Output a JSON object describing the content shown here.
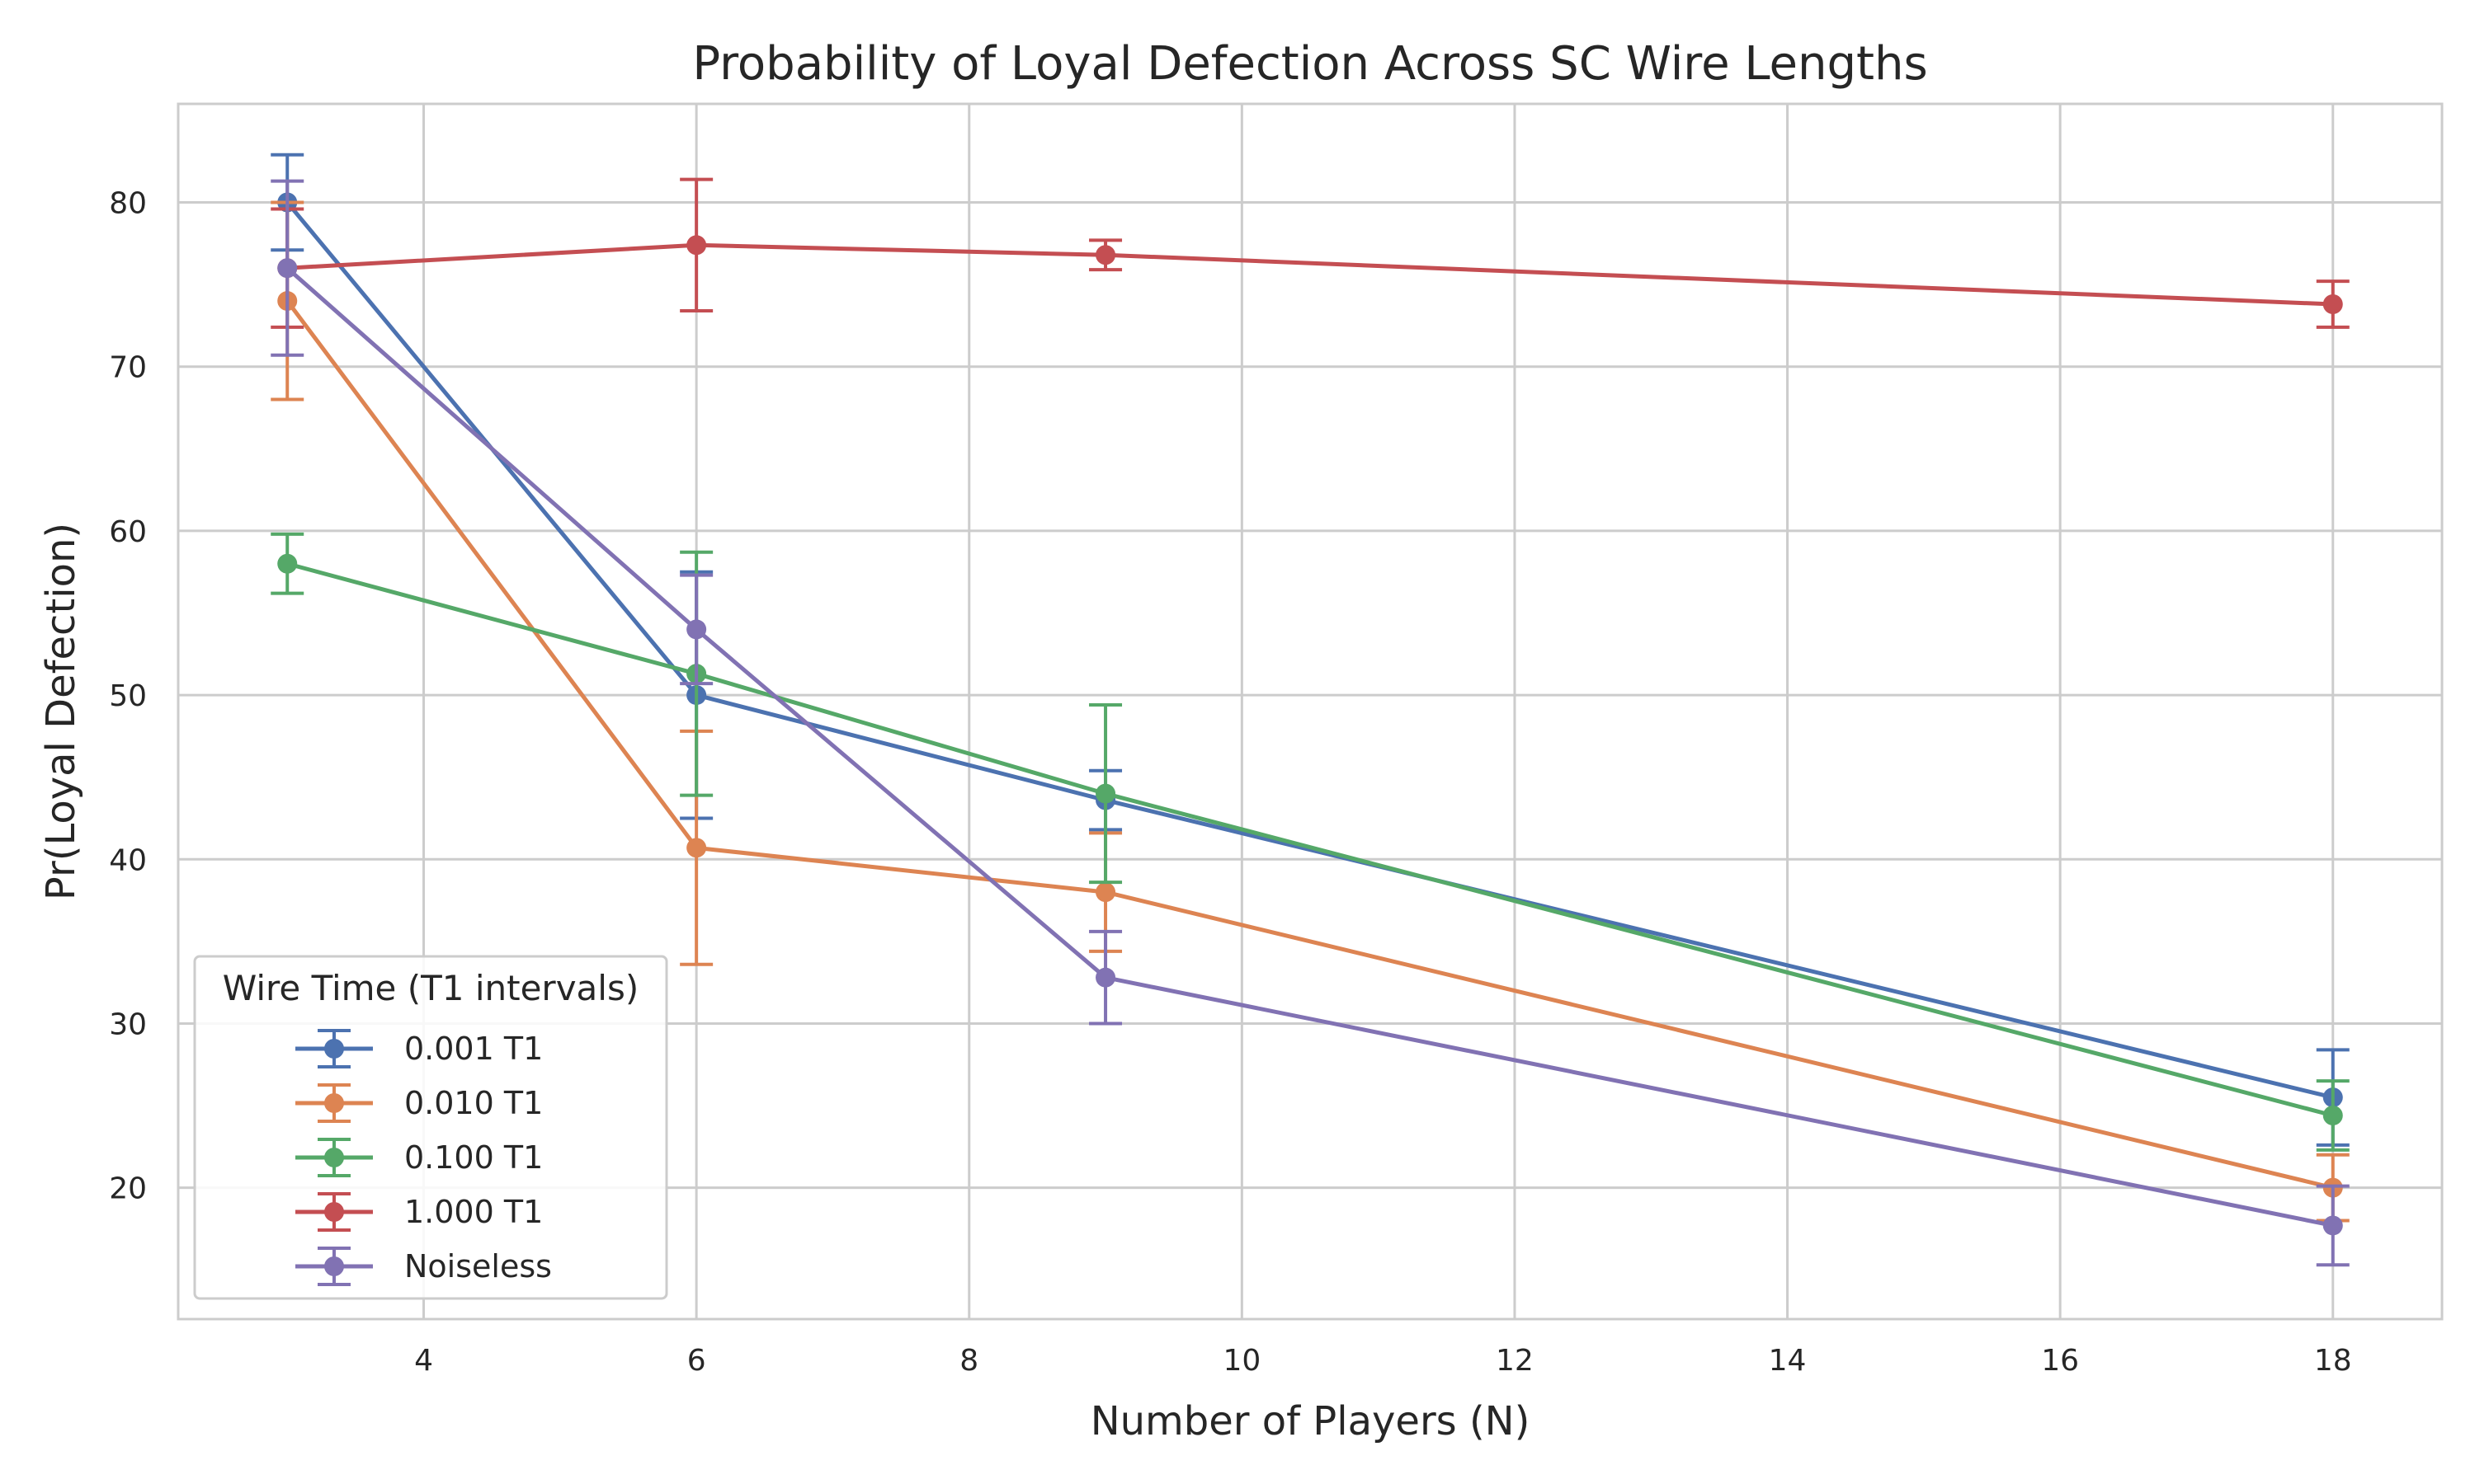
{
  "chart_data": {
    "type": "line",
    "title": "Probability of Loyal Defection Across SC Wire Lengths",
    "xlabel": "Number of Players (N)",
    "ylabel": "Pr(Loyal Defection)",
    "xlim": [
      2.2,
      18.8
    ],
    "ylim": [
      12,
      86
    ],
    "xticks": [
      4,
      6,
      8,
      10,
      12,
      14,
      16,
      18
    ],
    "yticks": [
      20,
      30,
      40,
      50,
      60,
      70,
      80
    ],
    "grid": true,
    "legend": {
      "title": "Wire Time (T1 intervals)",
      "placement": "lower-left"
    },
    "x": [
      3,
      6,
      9,
      18
    ],
    "series": [
      {
        "name": "0.001 T1",
        "color": "#4c72b0",
        "values": [
          80.0,
          50.0,
          43.6,
          25.5
        ],
        "errors": [
          2.9,
          7.5,
          1.8,
          2.9
        ]
      },
      {
        "name": "0.010 T1",
        "color": "#dd8452",
        "values": [
          74.0,
          40.7,
          38.0,
          20.0
        ],
        "errors": [
          6.0,
          7.1,
          3.6,
          2.0
        ]
      },
      {
        "name": "0.100 T1",
        "color": "#55a868",
        "values": [
          58.0,
          51.3,
          44.0,
          24.4
        ],
        "errors": [
          1.8,
          7.4,
          5.4,
          2.1
        ]
      },
      {
        "name": "1.000 T1",
        "color": "#c44e52",
        "values": [
          76.0,
          77.4,
          76.8,
          73.8
        ],
        "errors": [
          3.6,
          4.0,
          0.9,
          1.4
        ]
      },
      {
        "name": "Noiseless",
        "color": "#8172b3",
        "values": [
          76.0,
          54.0,
          32.8,
          17.7
        ],
        "errors": [
          5.3,
          3.3,
          2.8,
          2.4
        ]
      }
    ]
  }
}
